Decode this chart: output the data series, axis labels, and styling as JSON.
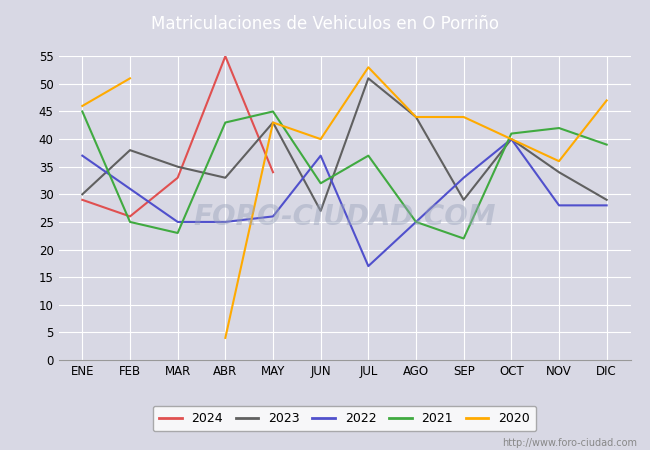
{
  "title": "Matriculaciones de Vehiculos en O Porriño",
  "months": [
    "ENE",
    "FEB",
    "MAR",
    "ABR",
    "MAY",
    "JUN",
    "JUL",
    "AGO",
    "SEP",
    "OCT",
    "NOV",
    "DIC"
  ],
  "series": {
    "2024": [
      29,
      26,
      33,
      55,
      34,
      null,
      null,
      null,
      null,
      null,
      null,
      null
    ],
    "2023": [
      30,
      38,
      35,
      33,
      43,
      27,
      51,
      44,
      29,
      40,
      34,
      29
    ],
    "2022": [
      37,
      31,
      25,
      25,
      26,
      37,
      17,
      25,
      33,
      40,
      28,
      28
    ],
    "2021": [
      45,
      25,
      23,
      43,
      45,
      32,
      37,
      25,
      22,
      41,
      42,
      39
    ],
    "2020": [
      46,
      51,
      null,
      4,
      43,
      40,
      53,
      44,
      44,
      40,
      36,
      47
    ]
  },
  "colors": {
    "2024": "#e05050",
    "2023": "#606060",
    "2022": "#5050cc",
    "2021": "#40aa40",
    "2020": "#ffaa00"
  },
  "ylim": [
    0,
    55
  ],
  "yticks": [
    0,
    5,
    10,
    15,
    20,
    25,
    30,
    35,
    40,
    45,
    50,
    55
  ],
  "title_bg": "#5588cc",
  "plot_bg": "#d8d8e4",
  "fig_bg": "#d8d8e4",
  "watermark_text": "FORO-CIUDAD.COM",
  "watermark_url": "http://www.foro-ciudad.com",
  "legend_order": [
    "2024",
    "2023",
    "2022",
    "2021",
    "2020"
  ]
}
